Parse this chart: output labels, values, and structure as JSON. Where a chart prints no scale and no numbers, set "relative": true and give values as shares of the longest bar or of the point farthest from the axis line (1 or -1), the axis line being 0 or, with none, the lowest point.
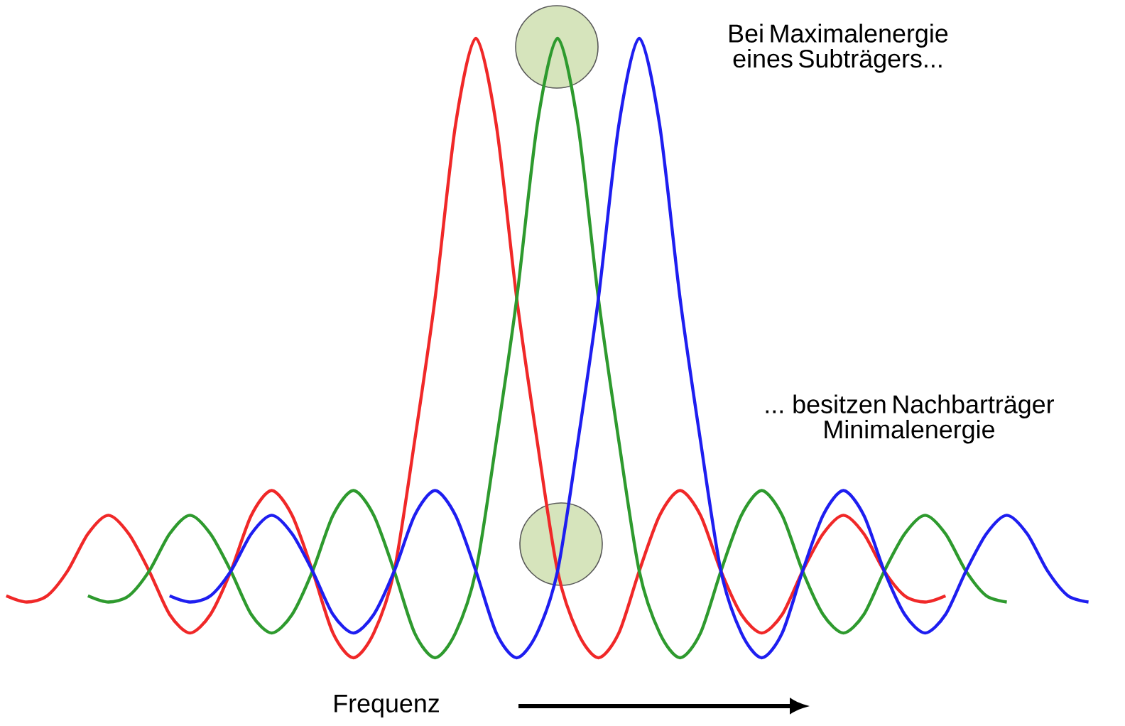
{
  "chart_data": {
    "type": "line",
    "relative": true,
    "xlabel": "Frequenz",
    "annotations": [
      "Bei Maximalenergie eines Subträgers...",
      "... besitzen Nachbarträger Minimalenergie"
    ],
    "categories": [
      null,
      null,
      null,
      null,
      null,
      null,
      null,
      null,
      null,
      null,
      null,
      null,
      null,
      null,
      null,
      null,
      null,
      null,
      null,
      null,
      null,
      null,
      null,
      null,
      null,
      null,
      null,
      null,
      null,
      null,
      null,
      null,
      null,
      null,
      null,
      null,
      null,
      null,
      null,
      null,
      null,
      null,
      null,
      null,
      null,
      null,
      null,
      null,
      null,
      null,
      null,
      null,
      null,
      null
    ],
    "series": [
      {
        "color": "#f02828",
        "values": [
          0.1,
          0.09,
          0.1,
          0.14,
          0.2,
          0.23,
          0.2,
          0.14,
          0.07,
          0.04,
          0.07,
          0.14,
          0.23,
          0.27,
          0.23,
          0.14,
          0.04,
          0,
          0.04,
          0.14,
          0.35,
          0.58,
          0.86,
          1,
          0.86,
          0.58,
          0.35,
          0.14,
          0.04,
          0,
          0.04,
          0.14,
          0.23,
          0.27,
          0.23,
          0.14,
          0.07,
          0.04,
          0.07,
          0.14,
          0.2,
          0.23,
          0.2,
          0.14,
          0.1,
          0.09,
          0.1,
          null,
          null,
          null,
          null,
          null,
          null,
          null
        ]
      },
      {
        "color": "#2e9a2e",
        "values": [
          null,
          null,
          null,
          null,
          0.1,
          0.09,
          0.1,
          0.14,
          0.2,
          0.23,
          0.2,
          0.14,
          0.07,
          0.04,
          0.07,
          0.14,
          0.23,
          0.27,
          0.23,
          0.14,
          0.04,
          0,
          0.04,
          0.14,
          0.35,
          0.58,
          0.86,
          1,
          0.86,
          0.58,
          0.35,
          0.14,
          0.04,
          0,
          0.04,
          0.14,
          0.23,
          0.27,
          0.23,
          0.14,
          0.07,
          0.04,
          0.07,
          0.14,
          0.2,
          0.23,
          0.2,
          0.14,
          0.1,
          0.09,
          null,
          null,
          null,
          null
        ]
      },
      {
        "color": "#1e1ef0",
        "values": [
          null,
          null,
          null,
          null,
          null,
          null,
          null,
          null,
          0.1,
          0.09,
          0.1,
          0.14,
          0.2,
          0.23,
          0.2,
          0.14,
          0.07,
          0.04,
          0.07,
          0.14,
          0.23,
          0.27,
          0.23,
          0.14,
          0.04,
          0,
          0.04,
          0.14,
          0.35,
          0.58,
          0.86,
          1,
          0.86,
          0.58,
          0.35,
          0.14,
          0.04,
          0,
          0.04,
          0.14,
          0.23,
          0.27,
          0.23,
          0.14,
          0.07,
          0.04,
          0.07,
          0.14,
          0.2,
          0.23,
          0.2,
          0.14,
          0.1,
          0.09
        ]
      }
    ]
  }
}
